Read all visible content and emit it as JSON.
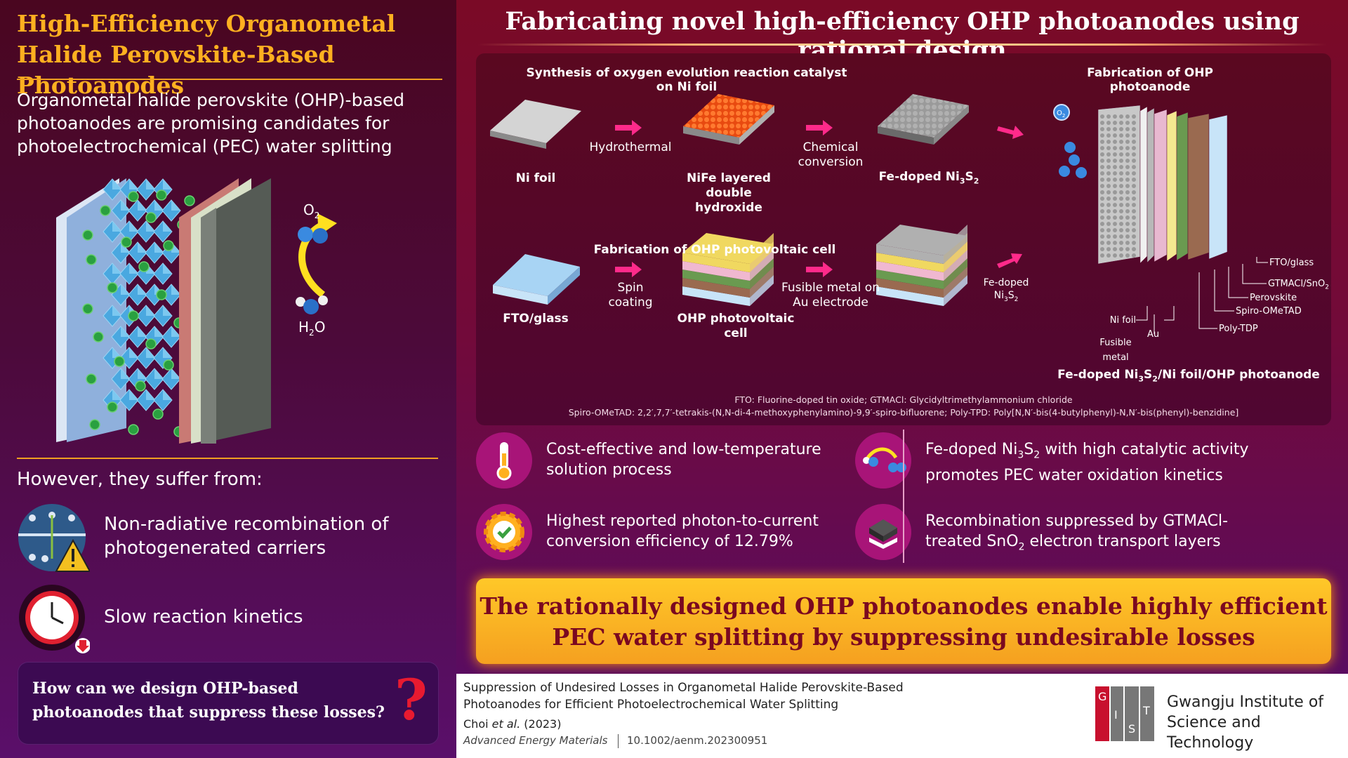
{
  "left": {
    "title": "High-Efficiency Organometal Halide Perovskite-Based Photoanodes",
    "intro": "Organometal halide perovskite (OHP)-based photoanodes are promising candidates for photoelectrochemical (PEC) water splitting",
    "illus": {
      "o2": "O",
      "o2_sub": "2",
      "h2o_h": "H",
      "h2o_sub": "2",
      "h2o_o": "O"
    },
    "suffer_heading": "However, they suffer from:",
    "issues": [
      {
        "text": "Non-radiative recombination of photogenerated carriers",
        "icon": "warning-icon"
      },
      {
        "text": "Slow reaction kinetics",
        "icon": "clock-icon"
      }
    ],
    "question": "How can we design OHP-based photoanodes that suppress these losses?",
    "qmark": "?"
  },
  "right": {
    "title": "Fabricating novel high-efficiency OHP photoanodes using rational design",
    "diagram": {
      "synthesis_header": "Synthesis of oxygen evolution reaction catalyst on Ni foil",
      "fab_photoanode_header": "Fabrication of OHP photoanode",
      "fab_cell_header": "Fabrication of OHP photovoltaic cell",
      "ni_foil": "Ni foil",
      "hydrothermal": "Hydrothermal",
      "nife": "NiFe layered double hydroxide",
      "chemical": "Chemical conversion",
      "fedoped": "Fe-doped Ni",
      "fedoped_sub1": "3",
      "fedoped_s": "S",
      "fedoped_sub2": "2",
      "fto_glass": "FTO/glass",
      "spin": "Spin coating",
      "ohp_cell": "OHP photovoltaic cell",
      "fusible_on_au": "Fusible metal on Au electrode",
      "fedoped_small": "Fe-doped",
      "fedoped_small2": "Ni",
      "fedoped_small_sub1": "3",
      "fedoped_small_s": "S",
      "fedoped_small_sub2": "2",
      "o2_bubble": "O",
      "o2_bubble_sub": "2",
      "layers": {
        "fto": "FTO/glass",
        "gtmacl": "GTMACl/SnO",
        "gtmacl_sub": "2",
        "perovskite": "Perovskite",
        "spiro": "Spiro-OMeTAD",
        "polytdp": "Poly-TDP",
        "ni_foil": "Ni foil",
        "au": "Au",
        "fusible": "Fusible metal"
      },
      "photoanode_label": "Fe-doped Ni",
      "photoanode_sub1": "3",
      "photoanode_s": "S",
      "photoanode_sub2": "2",
      "photoanode_rest": "/Ni foil/OHP photoanode",
      "note1": "FTO: Fluorine-doped tin oxide; GTMACl: Glycidyltrimethylammonium chloride",
      "note2": "Spiro-OMeTAD: 2,2′,7,7′-tetrakis-(N,N-di-4-methoxyphenylamino)-9,9′-spiro-bifluorene; Poly-TPD: Poly[N,N′-bis(4-butylphenyl)-N,N′-bis(phenyl)-benzidine]"
    },
    "features": [
      {
        "text": "Cost-effective and low-temperature solution process",
        "icon": "thermometer-icon"
      },
      {
        "text_a": "Fe-doped Ni",
        "sub1": "3",
        "text_s": "S",
        "sub2": "2",
        "text_b": " with high catalytic activity promotes PEC water oxidation kinetics",
        "icon": "molecule-icon"
      },
      {
        "text": "Highest reported photon-to-current conversion efficiency of 12.79%",
        "icon": "gear-check-icon"
      },
      {
        "text_a": "Recombination suppressed by GTMACl-treated SnO",
        "sub": "2",
        "text_b": " electron transport layers",
        "icon": "layer-stack-icon"
      }
    ],
    "conclusion": "The rationally designed OHP photoanodes enable highly efficient PEC water splitting by suppressing undesirable losses"
  },
  "footer": {
    "title": "Suppression of Undesired Losses in Organometal Halide Perovskite-Based Photoanodes for Efficient Photoelectrochemical Water Splitting",
    "authors_a": "Choi ",
    "authors_etal": "et al.",
    "authors_year": " (2023)",
    "journal": "Advanced Energy Materials",
    "doi": "10.1002/aenm.202300951",
    "logo_letters": [
      "G",
      "I",
      "S",
      "T"
    ],
    "institution_line1": "Gwangju Institute of",
    "institution_line2": "Science and Technology"
  },
  "colors": {
    "accent": "#ffb020",
    "arrow": "#ff2a8a",
    "conclusion_bg": "#ffc828",
    "conclusion_text": "#7a0820"
  }
}
